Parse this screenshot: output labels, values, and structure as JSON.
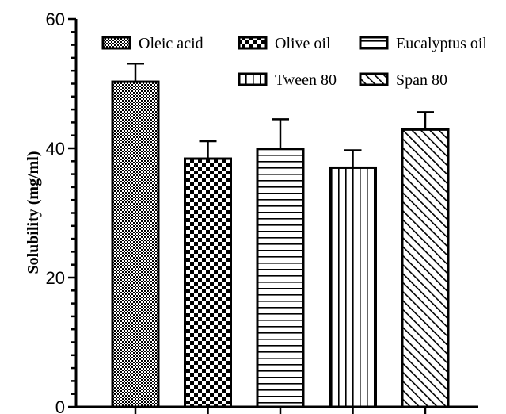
{
  "chart_data": {
    "type": "bar",
    "categories": [
      "Oleic acid",
      "Olive oil",
      "Eucalyptus oil",
      "Tween 80",
      "Span 80"
    ],
    "values": [
      50.3,
      38.4,
      39.9,
      37.0,
      42.9
    ],
    "errors": [
      2.8,
      2.7,
      4.6,
      2.7,
      2.7
    ],
    "xlabel": "",
    "ylabel": "Solubility (mg/ml)",
    "ylim": [
      0,
      60
    ],
    "yticks": [
      "0",
      "20",
      "40",
      "60"
    ],
    "grid": false,
    "legend_position": "top",
    "patterns": [
      "fine-checker",
      "checker",
      "horizontal-lines",
      "vertical-lines",
      "diagonal-lines"
    ]
  }
}
